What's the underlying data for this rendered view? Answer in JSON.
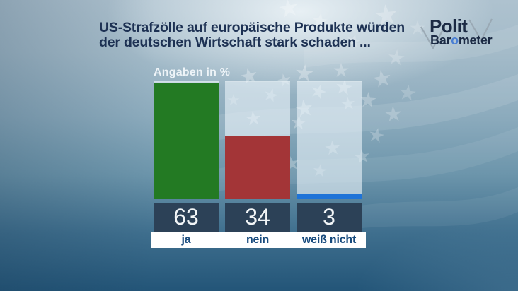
{
  "title": {
    "line1": "US-Strafzölle auf europäische Produkte würden",
    "line2": "der deutschen Wirtschaft stark schaden ..."
  },
  "logo": {
    "word1": "Polit",
    "word2_prefix": "Bar",
    "word2_accent": "o",
    "word2_suffix": "meter"
  },
  "chart_data": {
    "type": "bar",
    "title": "US-Strafzölle auf europäische Produkte würden der deutschen Wirtschaft stark schaden ...",
    "units_label": "Angaben in %",
    "categories": [
      "ja",
      "nein",
      "weiß nicht"
    ],
    "values": [
      63,
      34,
      3
    ],
    "bar_colors": [
      "#237a23",
      "#a33537",
      "#1e73d8"
    ],
    "xlabel": "",
    "ylabel": "",
    "ylim": [
      0,
      64
    ],
    "grid": false,
    "legend": false,
    "value_label_position": "boxes-below-bars"
  },
  "colors": {
    "title_text": "#1d3153",
    "value_box_bg": "#2c4157",
    "value_text": "#f2f5f7",
    "category_text": "#174a7d",
    "category_row_bg": "#ffffff",
    "column_panel_bg": "rgba(232,242,248,0.62)",
    "units_label_text": "#eef4f8",
    "logo_text": "#1b2a44",
    "logo_accent": "#4a7fd4",
    "logo_checkline": "#98a6b1",
    "background_top": "#aec2cf",
    "background_bottom": "#235578"
  },
  "background_motif": "us-flag-stars-and-stripes"
}
